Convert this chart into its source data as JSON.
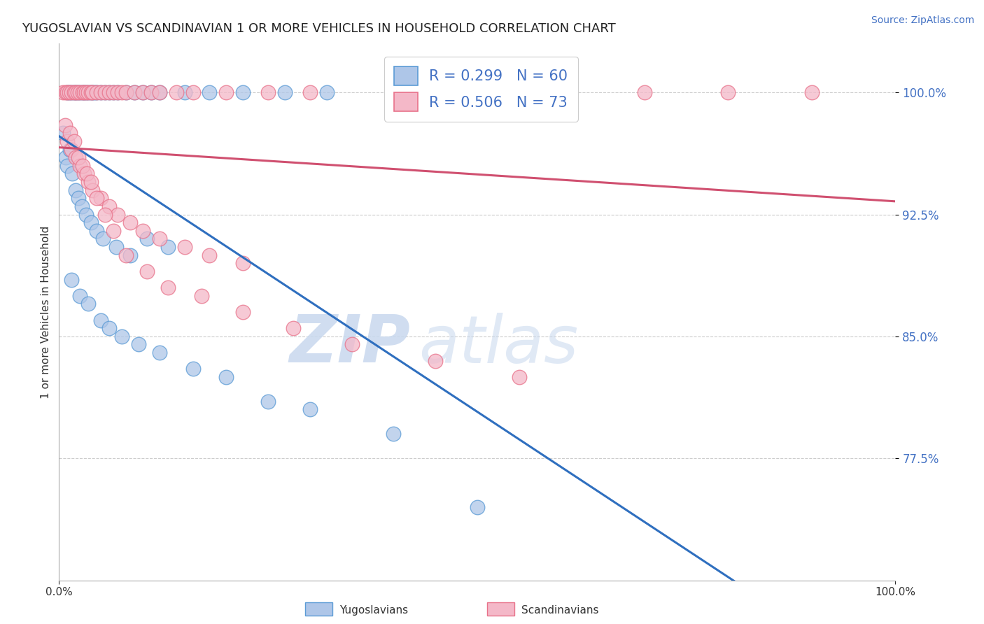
{
  "title": "YUGOSLAVIAN VS SCANDINAVIAN 1 OR MORE VEHICLES IN HOUSEHOLD CORRELATION CHART",
  "source": "Source: ZipAtlas.com",
  "ylabel": "1 or more Vehicles in Household",
  "y_ticks": [
    77.5,
    85.0,
    92.5,
    100.0
  ],
  "y_tick_labels": [
    "77.5%",
    "85.0%",
    "92.5%",
    "100.0%"
  ],
  "x_range": [
    0.0,
    100.0
  ],
  "y_range": [
    70.0,
    103.0
  ],
  "legend1_label": "R = 0.299   N = 60",
  "legend2_label": "R = 0.506   N = 73",
  "blue_color": "#aec6e8",
  "pink_color": "#f4b8c8",
  "blue_edge": "#5b9bd5",
  "pink_edge": "#e8728a",
  "blue_line_color": "#2f6fbf",
  "pink_line_color": "#d05070",
  "watermark_zip": "ZIP",
  "watermark_atlas": "atlas",
  "legend_labels_bottom": [
    "Yugoslavians",
    "Scandinavians"
  ],
  "blue_x": [
    1.0,
    1.2,
    1.5,
    1.8,
    2.0,
    2.2,
    2.5,
    2.8,
    3.0,
    3.2,
    3.5,
    3.8,
    4.0,
    4.2,
    4.5,
    5.0,
    5.5,
    6.0,
    6.5,
    7.0,
    8.0,
    9.0,
    10.0,
    11.0,
    12.0,
    15.0,
    18.0,
    22.0,
    27.0,
    32.0,
    0.5,
    0.8,
    1.0,
    1.3,
    1.6,
    2.0,
    2.3,
    2.7,
    3.2,
    3.8,
    4.5,
    5.2,
    6.8,
    8.5,
    10.5,
    13.0,
    1.5,
    2.5,
    3.5,
    5.0,
    6.0,
    7.5,
    9.5,
    12.0,
    16.0,
    20.0,
    25.0,
    30.0,
    40.0,
    50.0
  ],
  "blue_y": [
    100.0,
    100.0,
    100.0,
    100.0,
    100.0,
    100.0,
    100.0,
    100.0,
    100.0,
    100.0,
    100.0,
    100.0,
    100.0,
    100.0,
    100.0,
    100.0,
    100.0,
    100.0,
    100.0,
    100.0,
    100.0,
    100.0,
    100.0,
    100.0,
    100.0,
    100.0,
    100.0,
    100.0,
    100.0,
    100.0,
    97.5,
    96.0,
    95.5,
    96.5,
    95.0,
    94.0,
    93.5,
    93.0,
    92.5,
    92.0,
    91.5,
    91.0,
    90.5,
    90.0,
    91.0,
    90.5,
    88.5,
    87.5,
    87.0,
    86.0,
    85.5,
    85.0,
    84.5,
    84.0,
    83.0,
    82.5,
    81.0,
    80.5,
    79.0,
    74.5
  ],
  "pink_x": [
    0.5,
    0.8,
    1.0,
    1.2,
    1.5,
    1.8,
    2.0,
    2.2,
    2.5,
    2.8,
    3.0,
    3.2,
    3.5,
    3.8,
    4.0,
    4.5,
    5.0,
    5.5,
    6.0,
    6.5,
    7.0,
    7.5,
    8.0,
    9.0,
    10.0,
    11.0,
    12.0,
    14.0,
    16.0,
    20.0,
    25.0,
    30.0,
    40.0,
    50.0,
    60.0,
    70.0,
    80.0,
    90.0,
    1.0,
    1.5,
    2.0,
    2.5,
    3.0,
    3.5,
    4.0,
    5.0,
    6.0,
    7.0,
    8.5,
    10.0,
    12.0,
    15.0,
    18.0,
    22.0,
    0.7,
    1.3,
    1.8,
    2.3,
    2.8,
    3.3,
    3.8,
    4.5,
    5.5,
    6.5,
    8.0,
    10.5,
    13.0,
    17.0,
    22.0,
    28.0,
    35.0,
    45.0,
    55.0
  ],
  "pink_y": [
    100.0,
    100.0,
    100.0,
    100.0,
    100.0,
    100.0,
    100.0,
    100.0,
    100.0,
    100.0,
    100.0,
    100.0,
    100.0,
    100.0,
    100.0,
    100.0,
    100.0,
    100.0,
    100.0,
    100.0,
    100.0,
    100.0,
    100.0,
    100.0,
    100.0,
    100.0,
    100.0,
    100.0,
    100.0,
    100.0,
    100.0,
    100.0,
    100.0,
    100.0,
    100.0,
    100.0,
    100.0,
    100.0,
    97.0,
    96.5,
    96.0,
    95.5,
    95.0,
    94.5,
    94.0,
    93.5,
    93.0,
    92.5,
    92.0,
    91.5,
    91.0,
    90.5,
    90.0,
    89.5,
    98.0,
    97.5,
    97.0,
    96.0,
    95.5,
    95.0,
    94.5,
    93.5,
    92.5,
    91.5,
    90.0,
    89.0,
    88.0,
    87.5,
    86.5,
    85.5,
    84.5,
    83.5,
    82.5
  ]
}
